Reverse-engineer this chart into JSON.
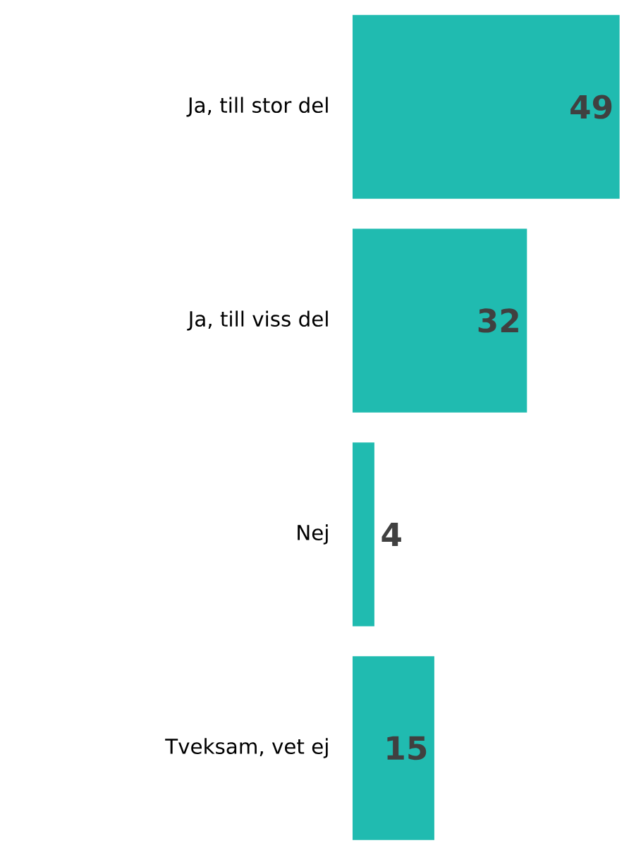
{
  "chart_data": {
    "type": "bar",
    "orientation": "horizontal",
    "categories": [
      "Ja, till stor del",
      "Ja, till viss del",
      "Nej",
      "Tveksam, vet ej"
    ],
    "values": [
      49,
      32,
      4,
      15
    ],
    "color": "#20bbb0",
    "data_labels": true
  }
}
